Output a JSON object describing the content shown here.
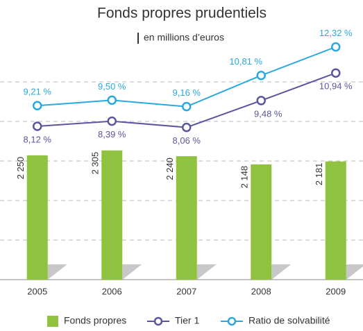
{
  "chart_data": {
    "type": "bar",
    "title": "Fonds propres prudentiels",
    "subtitle": "en millions d’euros",
    "categories": [
      "2005",
      "2006",
      "2007",
      "2008",
      "2009"
    ],
    "series": [
      {
        "name": "Fonds propres",
        "type": "bar",
        "color": "#8fc23e",
        "values": [
          2250,
          2305,
          2240,
          2148,
          2181
        ],
        "value_labels": [
          "2 250",
          "2 305",
          "2 240",
          "2 148",
          "2 181"
        ]
      },
      {
        "name": "Tier 1",
        "type": "line",
        "axis": "y2",
        "color": "#5a559e",
        "values": [
          8.12,
          8.39,
          8.06,
          9.48,
          10.94
        ],
        "value_labels": [
          "8,12 %",
          "8,39 %",
          "8,06 %",
          "9,48 %",
          "10,94 %"
        ]
      },
      {
        "name": "Ratio de solvabilité",
        "type": "line",
        "axis": "y2",
        "color": "#29a8df",
        "values": [
          9.21,
          9.5,
          9.16,
          10.81,
          12.32
        ],
        "value_labels": [
          "9,21 %",
          "9,50 %",
          "9,16 %",
          "10,81 %",
          "12,32 %"
        ]
      }
    ],
    "ylim": [
      850,
      3530
    ],
    "y2lim": [
      0,
      12.6
    ],
    "legend": "bottom"
  }
}
